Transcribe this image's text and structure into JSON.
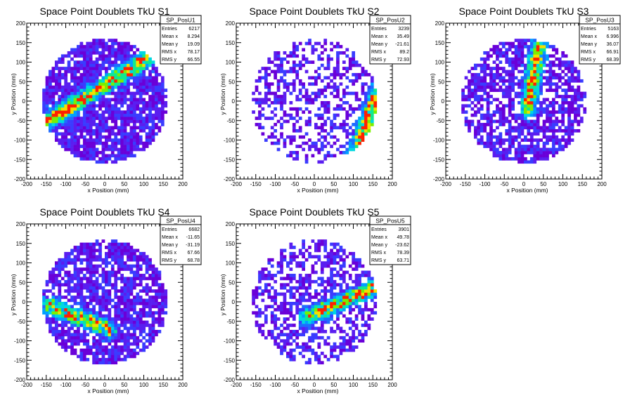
{
  "chart_data": [
    {
      "type": "heatmap",
      "title": "Space Point Doublets TkU S1",
      "xlabel": "x Position (mm)",
      "ylabel": "y Position (mm)",
      "xlim": [
        -200,
        200
      ],
      "ylim": [
        -200,
        200
      ],
      "xticks": [
        -200,
        -150,
        -100,
        -50,
        0,
        50,
        100,
        150,
        200
      ],
      "yticks": [
        -200,
        -150,
        -100,
        -50,
        0,
        50,
        100,
        150,
        200
      ],
      "stats": {
        "name": "SP_PosU1",
        "rows": [
          [
            "Entries",
            "6217"
          ],
          [
            "Mean x",
            "8.294"
          ],
          [
            "Mean y",
            "19.09"
          ],
          [
            "RMS x",
            "78.17"
          ],
          [
            "RMS y",
            "66.55"
          ]
        ]
      },
      "pattern": {
        "band": [
          [
            -160,
            -60
          ],
          [
            110,
            110
          ]
        ],
        "density": 0.85,
        "seed": 11
      }
    },
    {
      "type": "heatmap",
      "title": "Space Point Doublets TkU S2",
      "xlabel": "x Position (mm)",
      "ylabel": "y Position (mm)",
      "xlim": [
        -200,
        200
      ],
      "ylim": [
        -200,
        200
      ],
      "xticks": [
        -200,
        -150,
        -100,
        -50,
        0,
        50,
        100,
        150,
        200
      ],
      "yticks": [
        -200,
        -150,
        -100,
        -50,
        0,
        50,
        100,
        150,
        200
      ],
      "stats": {
        "name": "SP_PosU2",
        "rows": [
          [
            "Entries",
            "3239"
          ],
          [
            "Mean x",
            "35.49"
          ],
          [
            "Mean y",
            "-21.61"
          ],
          [
            "RMS x",
            "89.2"
          ],
          [
            "RMS y",
            "72.93"
          ]
        ]
      },
      "pattern": {
        "band": [
          [
            100,
            -150
          ],
          [
            160,
            20
          ]
        ],
        "density": 0.45,
        "seed": 23
      }
    },
    {
      "type": "heatmap",
      "title": "Space Point Doublets TkU S3",
      "xlabel": "x Position (mm)",
      "ylabel": "y Position (mm)",
      "xlim": [
        -200,
        200
      ],
      "ylim": [
        -200,
        200
      ],
      "xticks": [
        -200,
        -150,
        -100,
        -50,
        0,
        50,
        100,
        150,
        200
      ],
      "yticks": [
        -200,
        -150,
        -100,
        -50,
        0,
        50,
        100,
        150,
        200
      ],
      "stats": {
        "name": "SP_PosU3",
        "rows": [
          [
            "Entries",
            "5163"
          ],
          [
            "Mean x",
            "6.996"
          ],
          [
            "Mean y",
            "36.07"
          ],
          [
            "RMS x",
            "66.91"
          ],
          [
            "RMS y",
            "68.39"
          ]
        ]
      },
      "pattern": {
        "band": [
          [
            10,
            -20
          ],
          [
            40,
            150
          ]
        ],
        "density": 0.7,
        "seed": 37
      }
    },
    {
      "type": "heatmap",
      "title": "Space Point Doublets TkU S4",
      "xlabel": "x Position (mm)",
      "ylabel": "y Position (mm)",
      "xlim": [
        -200,
        200
      ],
      "ylim": [
        -200,
        200
      ],
      "xticks": [
        -200,
        -150,
        -100,
        -50,
        0,
        50,
        100,
        150,
        200
      ],
      "yticks": [
        -200,
        -150,
        -100,
        -50,
        0,
        50,
        100,
        150,
        200
      ],
      "stats": {
        "name": "SP_PosU4",
        "rows": [
          [
            "Entries",
            "6682"
          ],
          [
            "Mean x",
            "-11.65"
          ],
          [
            "Mean y",
            "-31.19"
          ],
          [
            "RMS x",
            "67.66"
          ],
          [
            "RMS y",
            "68.78"
          ]
        ]
      },
      "pattern": {
        "band": [
          [
            -140,
            -10
          ],
          [
            10,
            -70
          ]
        ],
        "density": 0.8,
        "seed": 41
      }
    },
    {
      "type": "heatmap",
      "title": "Space Point Doublets TkU S5",
      "xlabel": "x Position (mm)",
      "ylabel": "y Position (mm)",
      "xlim": [
        -200,
        200
      ],
      "ylim": [
        -200,
        200
      ],
      "xticks": [
        -200,
        -150,
        -100,
        -50,
        0,
        50,
        100,
        150,
        200
      ],
      "yticks": [
        -200,
        -150,
        -100,
        -50,
        0,
        50,
        100,
        150,
        200
      ],
      "stats": {
        "name": "SP_PosU5",
        "rows": [
          [
            "Entries",
            "3901"
          ],
          [
            "Mean x",
            "49.78"
          ],
          [
            "Mean y",
            "-23.62"
          ],
          [
            "RMS x",
            "78.39"
          ],
          [
            "RMS y",
            "63.71"
          ]
        ]
      },
      "pattern": {
        "band": [
          [
            -20,
            -40
          ],
          [
            160,
            40
          ]
        ],
        "density": 0.5,
        "seed": 53
      }
    }
  ]
}
